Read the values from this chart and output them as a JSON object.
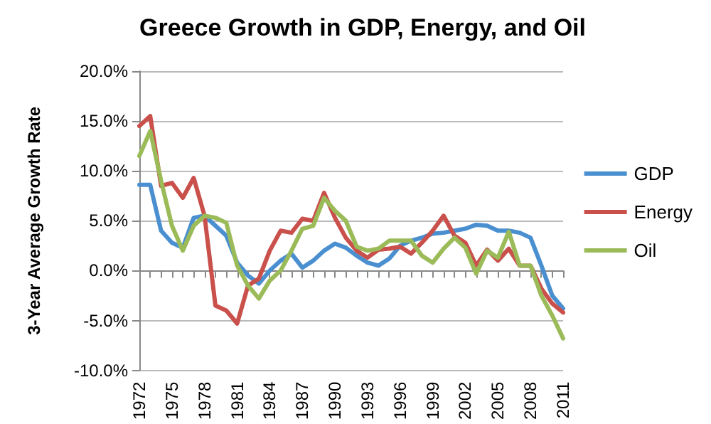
{
  "chart_data": {
    "type": "line",
    "title": "Greece Growth in GDP, Energy, and Oil",
    "ylabel": "3-Year Average Growth Rate",
    "categories": [
      "1972",
      null,
      null,
      "1975",
      null,
      null,
      "1978",
      null,
      null,
      "1981",
      null,
      null,
      "1984",
      null,
      null,
      "1987",
      null,
      null,
      "1990",
      null,
      null,
      "1993",
      null,
      null,
      "1996",
      null,
      null,
      "1999",
      null,
      null,
      "2002",
      null,
      null,
      "2005",
      null,
      null,
      "2008",
      null,
      null,
      "2011"
    ],
    "series": [
      {
        "name": "GDP",
        "color": "#4a8fd0",
        "values": [
          8.6,
          8.6,
          4.0,
          2.8,
          2.3,
          5.3,
          5.5,
          4.5,
          3.5,
          0.8,
          -0.5,
          -1.3,
          0.0,
          1.0,
          1.7,
          0.3,
          1.0,
          2.0,
          2.7,
          2.3,
          1.5,
          0.8,
          0.5,
          1.2,
          2.5,
          3.0,
          3.3,
          3.7,
          3.8,
          4.0,
          4.2,
          4.6,
          4.5,
          4.0,
          4.0,
          3.8,
          3.3,
          0.5,
          -2.5,
          -3.8
        ]
      },
      {
        "name": "Energy",
        "color": "#c9504b",
        "values": [
          14.5,
          15.5,
          8.5,
          8.8,
          7.3,
          9.3,
          5.5,
          -3.5,
          -4.0,
          -5.3,
          -1.5,
          -0.8,
          2.0,
          4.0,
          3.8,
          5.2,
          5.0,
          7.8,
          5.3,
          3.3,
          2.0,
          1.3,
          2.1,
          2.2,
          2.4,
          1.7,
          2.8,
          4.0,
          5.5,
          3.5,
          2.8,
          0.5,
          2.1,
          1.0,
          2.2,
          0.5,
          0.5,
          -1.8,
          -3.3,
          -4.2
        ]
      },
      {
        "name": "Oil",
        "color": "#9bbb59",
        "values": [
          11.5,
          14.0,
          9.0,
          4.5,
          2.0,
          4.5,
          5.5,
          5.3,
          4.8,
          0.5,
          -1.5,
          -2.8,
          -1.0,
          0.0,
          2.0,
          4.2,
          4.5,
          7.3,
          6.0,
          5.0,
          2.4,
          2.0,
          2.2,
          3.0,
          3.0,
          3.0,
          1.5,
          0.8,
          2.2,
          3.3,
          2.3,
          -0.3,
          2.0,
          1.3,
          3.9,
          0.5,
          0.5,
          -2.5,
          -4.5,
          -6.8
        ]
      }
    ],
    "ylim": [
      -10,
      20
    ],
    "yticks": [
      {
        "value": -10,
        "label": "-10.0%"
      },
      {
        "value": -5,
        "label": "-5.0%"
      },
      {
        "value": 0,
        "label": "0.0%"
      },
      {
        "value": 5,
        "label": "5.0%"
      },
      {
        "value": 10,
        "label": "10.0%"
      },
      {
        "value": 15,
        "label": "15.0%"
      },
      {
        "value": 20,
        "label": "20.0%"
      }
    ],
    "grid": "y",
    "legend": "right",
    "marker": "none",
    "line_style": "solid"
  }
}
